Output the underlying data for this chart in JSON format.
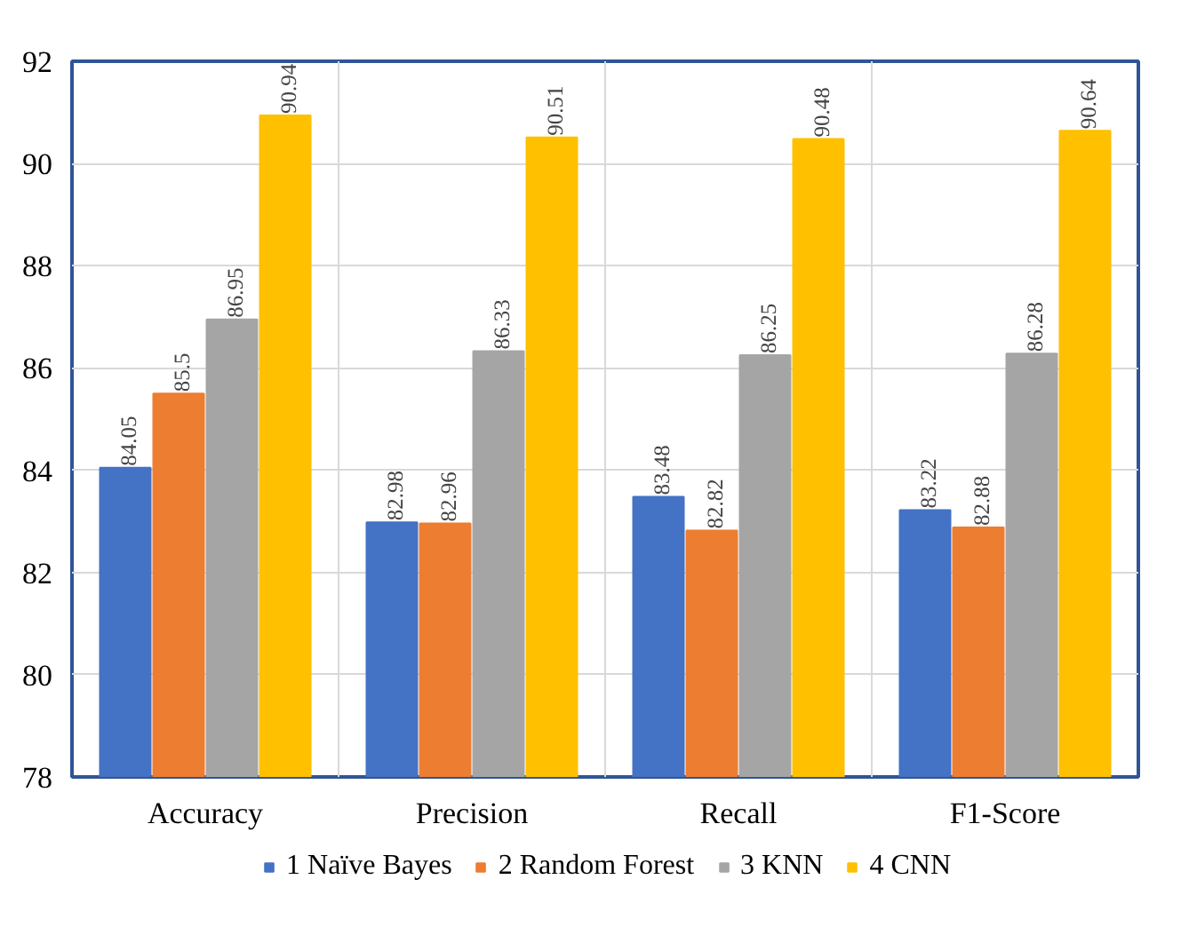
{
  "chart_data": {
    "type": "bar",
    "categories": [
      "Accuracy",
      "Precision",
      "Recall",
      "F1-Score"
    ],
    "series": [
      {
        "name": "1 Naïve Bayes",
        "color": "#4472c4",
        "values": [
          84.05,
          82.98,
          83.48,
          83.22
        ]
      },
      {
        "name": "2 Random Forest",
        "color": "#ed7d31",
        "values": [
          85.5,
          82.96,
          82.82,
          82.88
        ]
      },
      {
        "name": "3 KNN",
        "color": "#a5a5a5",
        "values": [
          86.95,
          86.33,
          86.25,
          86.28
        ]
      },
      {
        "name": "4 CNN",
        "color": "#ffc000",
        "values": [
          90.94,
          90.51,
          90.48,
          90.64
        ]
      }
    ],
    "ylim": [
      78,
      92
    ],
    "yticks": [
      78,
      80,
      82,
      84,
      86,
      88,
      90,
      92
    ],
    "grid": true,
    "legend": "bottom",
    "data_labels": true
  }
}
